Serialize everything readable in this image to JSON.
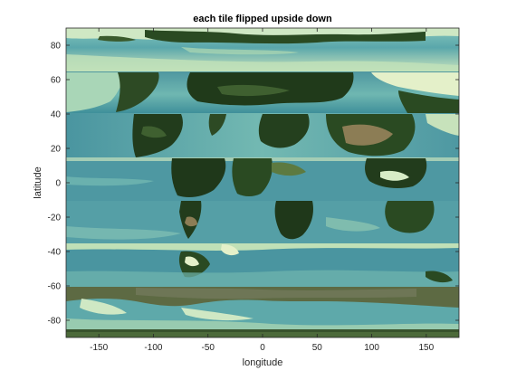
{
  "chart_data": {
    "type": "image",
    "title": "each tile flipped upside down",
    "xlabel": "longitude",
    "ylabel": "latitude",
    "xlim": [
      -180,
      180
    ],
    "ylim": [
      -90,
      90
    ],
    "xticks": [
      -150,
      -100,
      -50,
      0,
      50,
      100,
      150
    ],
    "yticks": [
      -80,
      -60,
      -40,
      -20,
      0,
      20,
      40,
      60,
      80
    ],
    "tiles": [
      {
        "lat_range": [
          65,
          90
        ],
        "flipped": true
      },
      {
        "lat_range": [
          40,
          65
        ],
        "flipped": true
      },
      {
        "lat_range": [
          15,
          40
        ],
        "flipped": true
      },
      {
        "lat_range": [
          -10,
          15
        ],
        "flipped": true
      },
      {
        "lat_range": [
          -35,
          -10
        ],
        "flipped": true
      },
      {
        "lat_range": [
          -60,
          -35
        ],
        "flipped": true
      },
      {
        "lat_range": [
          -85,
          -60
        ],
        "flipped": true
      },
      {
        "lat_range": [
          -90,
          -85
        ],
        "flipped": true
      }
    ],
    "grid": false,
    "colors": {
      "deep_ocean": "#3f8f9a",
      "mid_ocean": "#66b3b0",
      "shallow_ocean": "#cfe8c4",
      "land_dark": "#203a1a",
      "land_mid": "#3f6030",
      "land_desert": "#8c7d55",
      "ice": "#6e7656"
    }
  }
}
